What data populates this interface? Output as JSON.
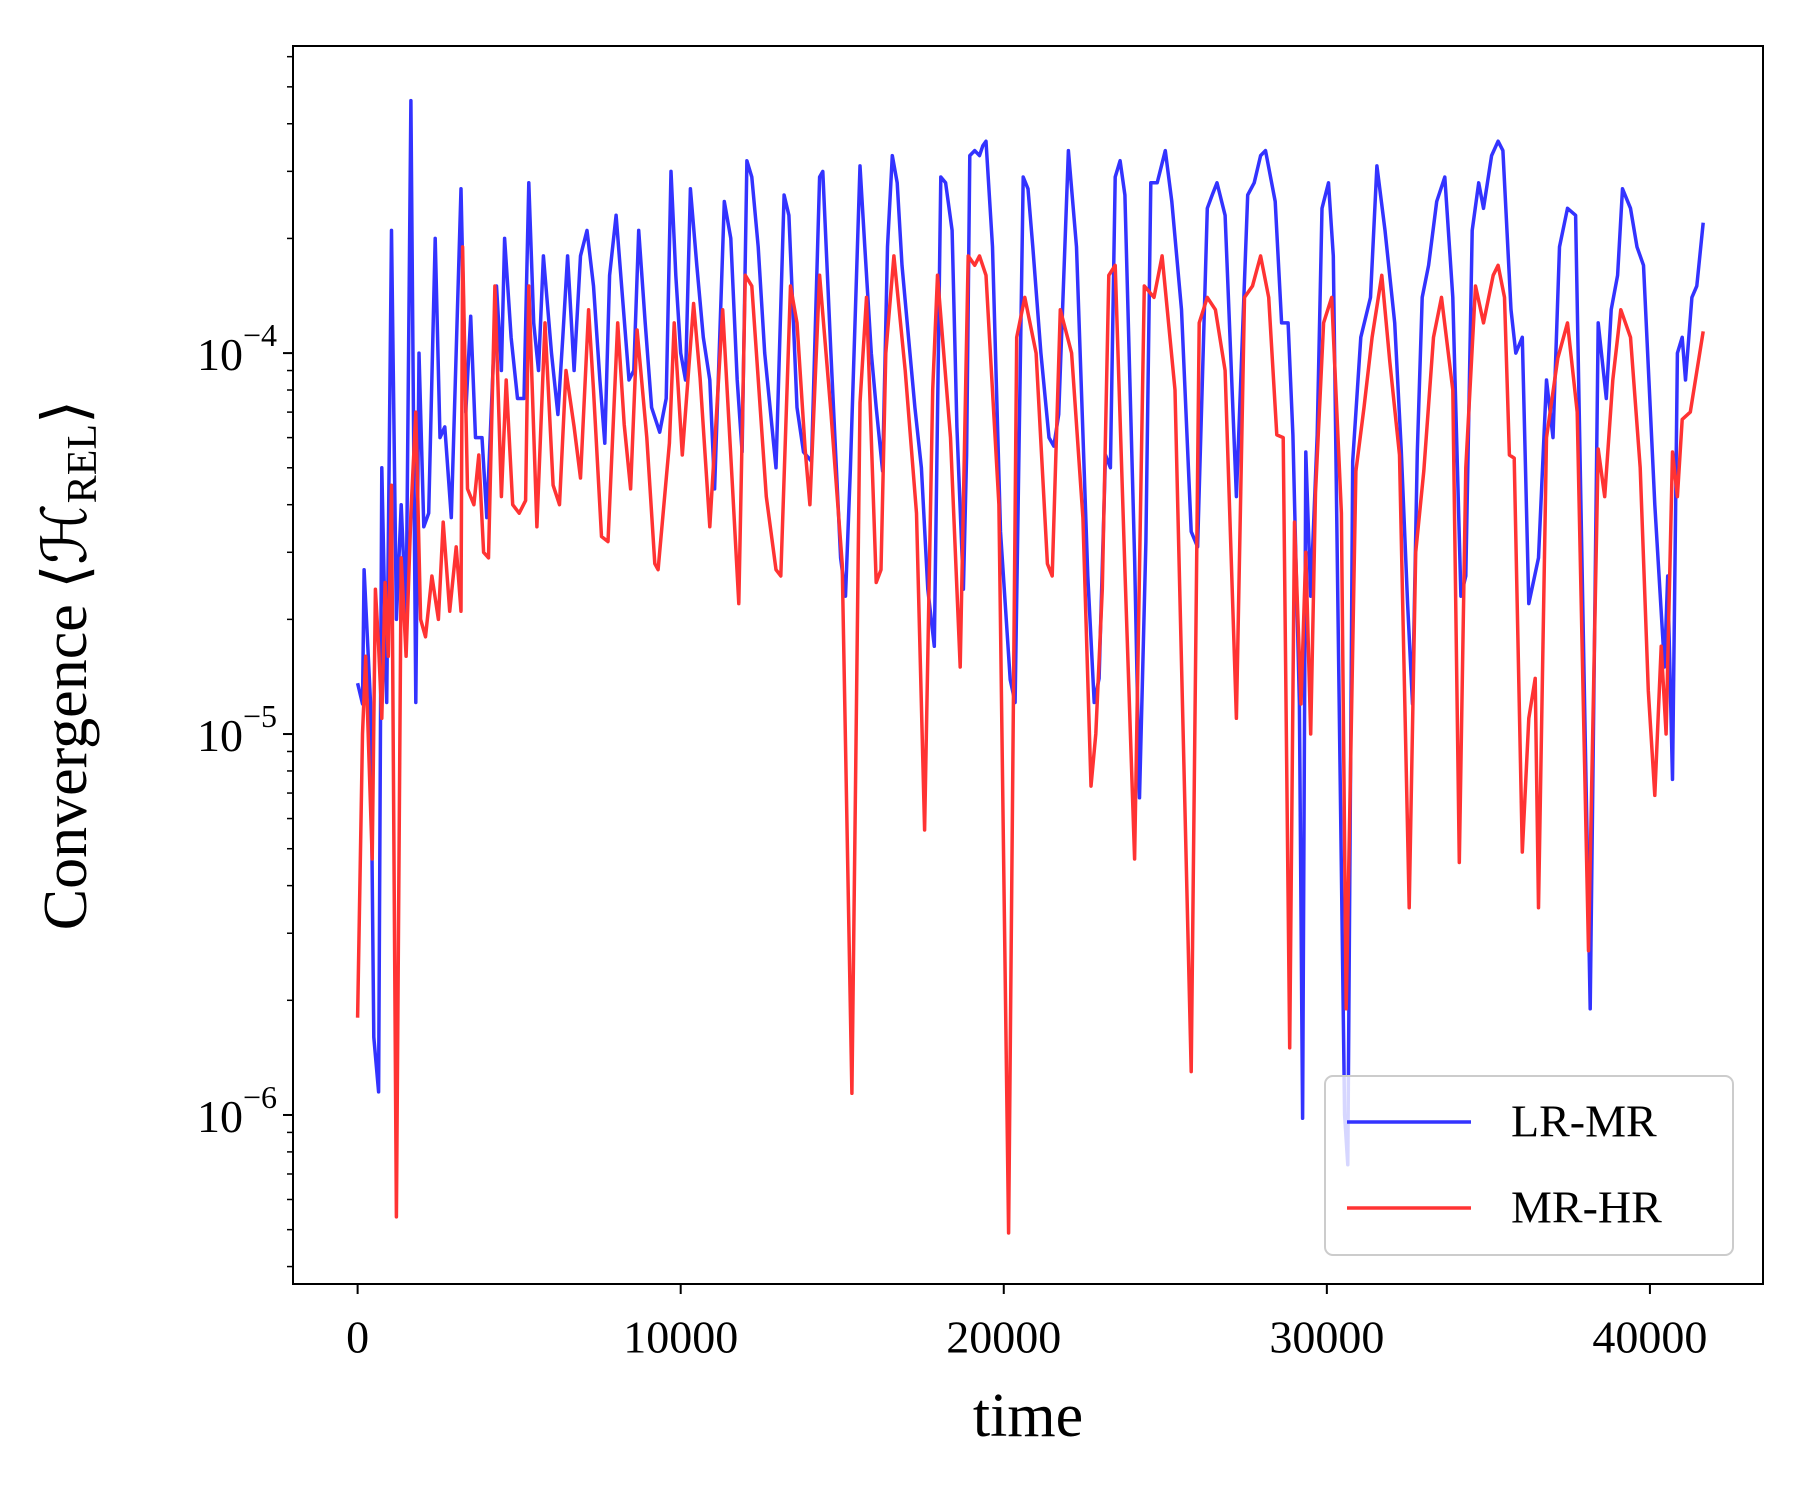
{
  "chart_data": {
    "type": "line",
    "xlabel": "time",
    "ylabel": {
      "text": "Convergence ⟨ℋ",
      "subscript": "REL",
      "close": "⟩"
    },
    "log_y": true,
    "legend": "lower right",
    "xlim": [
      -2000,
      43500
    ],
    "xticks": [
      0,
      10000,
      20000,
      30000,
      40000
    ],
    "ylim": [
      3.6e-07,
      0.00064
    ],
    "yticks": [
      {
        "value": 1e-06,
        "label": "10",
        "exponent": "−6"
      },
      {
        "value": 1e-05,
        "label": "10",
        "exponent": "−5"
      },
      {
        "value": 0.0001,
        "label": "10",
        "exponent": "−4"
      }
    ],
    "yticks_minor": [
      4e-07,
      5e-07,
      6e-07,
      7e-07,
      8e-07,
      9e-07,
      2e-06,
      3e-06,
      4e-06,
      5e-06,
      6e-06,
      7e-06,
      8e-06,
      9e-06,
      2e-05,
      3e-05,
      4e-05,
      5e-05,
      6e-05,
      7e-05,
      8e-05,
      9e-05,
      0.0002,
      0.0003,
      0.0004,
      0.0005,
      0.0006
    ],
    "series": [
      {
        "name": "LR-MR",
        "color": "#3333ff",
        "x": [
          0,
          150,
          200,
          400,
          500,
          650,
          750,
          900,
          1050,
          1200,
          1350,
          1500,
          1650,
          1800,
          1900,
          2050,
          2200,
          2400,
          2550,
          2700,
          2900,
          3200,
          3350,
          3500,
          3650,
          3850,
          4000,
          4300,
          4450,
          4550,
          4750,
          4950,
          5150,
          5300,
          5450,
          5600,
          5750,
          6000,
          6200,
          6350,
          6500,
          6700,
          6900,
          7100,
          7300,
          7500,
          7650,
          7800,
          8000,
          8200,
          8400,
          8550,
          8700,
          8900,
          9100,
          9350,
          9550,
          9700,
          9850,
          10000,
          10150,
          10300,
          10500,
          10700,
          10900,
          11050,
          11350,
          11550,
          11750,
          11900,
          12050,
          12200,
          12400,
          12600,
          12950,
          13200,
          13350,
          13600,
          13800,
          14050,
          14300,
          14400,
          14650,
          14950,
          15100,
          15250,
          15550,
          15700,
          15900,
          16050,
          16250,
          16400,
          16550,
          16700,
          16850,
          17050,
          17250,
          17450,
          17650,
          17850,
          18050,
          18200,
          18400,
          18550,
          18750,
          18850,
          18950,
          19100,
          19250,
          19350,
          19450,
          19650,
          19900,
          20200,
          20350,
          20600,
          20750,
          20900,
          21150,
          21400,
          21550,
          21700,
          22000,
          22250,
          22600,
          22800,
          22950,
          23150,
          23300,
          23450,
          23600,
          23750,
          24050,
          24200,
          24400,
          24550,
          24750,
          25000,
          25200,
          25500,
          25800,
          26000,
          26300,
          26450,
          26600,
          26850,
          27200,
          27550,
          27750,
          27950,
          28100,
          28400,
          28600,
          28800,
          28950,
          29150,
          29250,
          29350,
          29500,
          29700,
          29850,
          30050,
          30200,
          30550,
          30650,
          30800,
          31050,
          31350,
          31550,
          31800,
          32100,
          32300,
          32500,
          32650,
          32800,
          32950,
          33150,
          33400,
          33650,
          33900,
          34150,
          34300,
          34500,
          34700,
          34850,
          35100,
          35300,
          35450,
          35700,
          35850,
          36050,
          36250,
          36550,
          36800,
          37000,
          37200,
          37450,
          37700,
          38150,
          38400,
          38650,
          38800,
          39000,
          39150,
          39400,
          39600,
          39800,
          40150,
          40450,
          40550,
          40700,
          40850,
          41000,
          41100,
          41300,
          41450,
          41650
        ],
        "values": [
          1.36e-05,
          1.2e-05,
          2.7e-05,
          1.21e-05,
          1.6e-06,
          1.15e-06,
          5e-05,
          1.21e-05,
          0.00021,
          2e-05,
          4e-05,
          2e-05,
          0.00046,
          1.21e-05,
          0.0001,
          3.5e-05,
          3.8e-05,
          0.0002,
          6e-05,
          6.4e-05,
          3.7e-05,
          0.00027,
          7e-05,
          0.000125,
          6e-05,
          6e-05,
          3.7e-05,
          0.00015,
          9e-05,
          0.0002,
          0.00011,
          7.6e-05,
          7.6e-05,
          0.00028,
          0.00012,
          9e-05,
          0.00018,
          0.0001,
          6.9e-05,
          0.00011,
          0.00018,
          9e-05,
          0.00018,
          0.00021,
          0.00015,
          8.5e-05,
          5.8e-05,
          0.00016,
          0.00023,
          0.00014,
          8.5e-05,
          9e-05,
          0.00021,
          0.00012,
          7.2e-05,
          6.2e-05,
          7.6e-05,
          0.0003,
          0.00016,
          0.0001,
          8.5e-05,
          0.00027,
          0.00017,
          0.00011,
          8.5e-05,
          4.4e-05,
          0.00025,
          0.0002,
          8.5e-05,
          5.5e-05,
          0.00032,
          0.00029,
          0.00019,
          0.0001,
          5e-05,
          0.00026,
          0.00023,
          7.2e-05,
          5.5e-05,
          5.2e-05,
          0.00029,
          0.0003,
          0.0001,
          2.9e-05,
          2.3e-05,
          4.9e-05,
          0.00031,
          0.00019,
          0.0001,
          7.2e-05,
          4.9e-05,
          0.00019,
          0.00033,
          0.00028,
          0.00017,
          0.00011,
          7.2e-05,
          5e-05,
          2.4e-05,
          1.7e-05,
          0.00029,
          0.00028,
          0.00021,
          6.4e-05,
          2.4e-05,
          5.4e-05,
          0.00033,
          0.00034,
          0.00033,
          0.00035,
          0.00036,
          0.00019,
          3.4e-05,
          1.39e-05,
          1.21e-05,
          0.00029,
          0.00027,
          0.00019,
          0.0001,
          6e-05,
          5.7e-05,
          6.9e-05,
          0.00034,
          0.00019,
          2.6e-05,
          1.21e-05,
          1.4e-05,
          5.4e-05,
          5e-05,
          0.00029,
          0.00032,
          0.00026,
          2.9e-05,
          6.8e-06,
          3.2e-05,
          0.00028,
          0.00028,
          0.00034,
          0.00025,
          0.00013,
          3.4e-05,
          3.1e-05,
          0.00024,
          0.00026,
          0.00028,
          0.00023,
          4.2e-05,
          0.00026,
          0.00028,
          0.00033,
          0.00034,
          0.00025,
          0.00012,
          0.00012,
          6.1e-05,
          1.2e-05,
          9.8e-07,
          5.5e-05,
          2.3e-05,
          6.1e-05,
          0.00024,
          0.00028,
          0.00018,
          1e-06,
          7.4e-07,
          5.2e-05,
          0.00011,
          0.00014,
          0.00031,
          0.00021,
          0.00012,
          5.6e-05,
          2.2e-05,
          1.2e-05,
          5.5e-05,
          0.00014,
          0.00017,
          0.00025,
          0.00029,
          0.00014,
          2.3e-05,
          2.6e-05,
          0.00021,
          0.00028,
          0.00024,
          0.00033,
          0.00036,
          0.00034,
          0.00013,
          0.0001,
          0.00011,
          2.2e-05,
          2.9e-05,
          8.5e-05,
          6e-05,
          0.00019,
          0.00024,
          0.00023,
          1.9e-06,
          0.00012,
          7.6e-05,
          0.00013,
          0.00016,
          0.00027,
          0.00024,
          0.00019,
          0.00017,
          4e-05,
          1.5e-05,
          2.6e-05,
          7.6e-06,
          0.0001,
          0.00011,
          8.5e-05,
          0.00014,
          0.00015,
          0.00022
        ]
      },
      {
        "name": "MR-HR",
        "color": "#ff3333",
        "x": [
          0,
          150,
          250,
          450,
          550,
          650,
          750,
          850,
          950,
          1050,
          1200,
          1350,
          1500,
          1650,
          1800,
          1950,
          2100,
          2300,
          2500,
          2650,
          2850,
          3050,
          3200,
          3250,
          3400,
          3600,
          3750,
          3900,
          4050,
          4250,
          4450,
          4600,
          4800,
          5000,
          5200,
          5300,
          5550,
          5800,
          6050,
          6250,
          6450,
          6700,
          6900,
          7150,
          7300,
          7550,
          7750,
          8050,
          8250,
          8450,
          8650,
          8950,
          9200,
          9300,
          9650,
          9800,
          10050,
          10400,
          10600,
          10900,
          11300,
          11600,
          11800,
          12000,
          12200,
          12650,
          12950,
          13100,
          13400,
          13600,
          13850,
          14000,
          14300,
          14650,
          15000,
          15300,
          15550,
          15750,
          16050,
          16200,
          16350,
          16600,
          16950,
          17300,
          17550,
          17800,
          17950,
          18350,
          18650,
          18900,
          19100,
          19250,
          19450,
          19850,
          20150,
          20400,
          20650,
          21000,
          21350,
          21500,
          21750,
          22100,
          22450,
          22700,
          22850,
          23050,
          23250,
          23450,
          23750,
          24050,
          24350,
          24650,
          24900,
          25300,
          25800,
          26050,
          26300,
          26550,
          26850,
          27200,
          27450,
          27700,
          27950,
          28200,
          28450,
          28650,
          28850,
          29000,
          29200,
          29350,
          29500,
          29650,
          29900,
          30150,
          30450,
          30600,
          30900,
          31150,
          31400,
          31700,
          31950,
          32250,
          32550,
          32750,
          33000,
          33300,
          33550,
          33900,
          34100,
          34300,
          34600,
          34850,
          35150,
          35300,
          35500,
          35650,
          35800,
          36050,
          36250,
          36450,
          36550,
          36800,
          37150,
          37450,
          37750,
          38100,
          38400,
          38600,
          38850,
          39100,
          39400,
          39700,
          39950,
          40150,
          40350,
          40500,
          40700,
          40850,
          41000,
          41250,
          41650
        ],
        "values": [
          1.8e-06,
          1e-05,
          1.6e-05,
          4.7e-06,
          2.4e-05,
          1.7e-05,
          1.1e-05,
          2.5e-05,
          1.6e-05,
          4.5e-05,
          5.4e-07,
          2.9e-05,
          1.6e-05,
          3.8e-05,
          7e-05,
          2e-05,
          1.8e-05,
          2.6e-05,
          2e-05,
          3.6e-05,
          2.1e-05,
          3.1e-05,
          2.1e-05,
          0.00019,
          4.4e-05,
          4e-05,
          5.4e-05,
          3e-05,
          2.9e-05,
          0.00015,
          4.2e-05,
          8.5e-05,
          4e-05,
          3.8e-05,
          4.1e-05,
          0.00015,
          3.5e-05,
          0.00012,
          4.5e-05,
          4e-05,
          9e-05,
          6.4e-05,
          4.7e-05,
          0.00013,
          8e-05,
          3.3e-05,
          3.2e-05,
          0.00012,
          6.5e-05,
          4.4e-05,
          0.000115,
          6e-05,
          2.8e-05,
          2.7e-05,
          5.8e-05,
          0.00012,
          5.4e-05,
          0.000135,
          8.6e-05,
          3.5e-05,
          0.00013,
          4.5e-05,
          2.2e-05,
          0.00016,
          0.00015,
          4.2e-05,
          2.7e-05,
          2.6e-05,
          0.00015,
          0.00012,
          5.6e-05,
          4e-05,
          0.00016,
          7e-05,
          2.8e-05,
          1.14e-06,
          7.4e-05,
          0.00014,
          2.5e-05,
          2.7e-05,
          0.0001,
          0.00018,
          9e-05,
          3.8e-05,
          5.6e-06,
          8e-05,
          0.00016,
          6e-05,
          1.5e-05,
          0.00018,
          0.00017,
          0.00018,
          0.00016,
          4e-05,
          4.9e-07,
          0.00011,
          0.00014,
          0.0001,
          2.8e-05,
          2.6e-05,
          0.00013,
          0.0001,
          3.7e-05,
          7.3e-06,
          1e-05,
          2.4e-05,
          0.00016,
          0.00017,
          2.7e-05,
          4.7e-06,
          0.00015,
          0.00014,
          0.00018,
          8e-05,
          1.3e-06,
          0.00012,
          0.00014,
          0.00013,
          9e-05,
          1.1e-05,
          0.00014,
          0.00015,
          0.00018,
          0.00014,
          6.1e-05,
          6e-05,
          1.5e-06,
          3.6e-05,
          1.2e-05,
          3e-05,
          1e-05,
          4.3e-05,
          0.00012,
          0.00014,
          3.8e-05,
          1.9e-06,
          4.9e-05,
          7.2e-05,
          0.00011,
          0.00016,
          9.5e-05,
          5.4e-05,
          3.5e-06,
          3e-05,
          4.9e-05,
          0.00011,
          0.00014,
          8e-05,
          4.6e-06,
          5e-05,
          0.00015,
          0.00012,
          0.00016,
          0.00017,
          0.00014,
          5.4e-05,
          5.3e-05,
          4.9e-06,
          1.1e-05,
          1.4e-05,
          3.5e-06,
          6e-05,
          9.7e-05,
          0.00012,
          7e-05,
          2.7e-06,
          5.6e-05,
          4.2e-05,
          8.5e-05,
          0.00013,
          0.00011,
          5e-05,
          1.3e-05,
          6.9e-06,
          1.7e-05,
          1e-05,
          5.5e-05,
          4.2e-05,
          6.7e-05,
          7e-05,
          0.000114
        ]
      }
    ]
  }
}
